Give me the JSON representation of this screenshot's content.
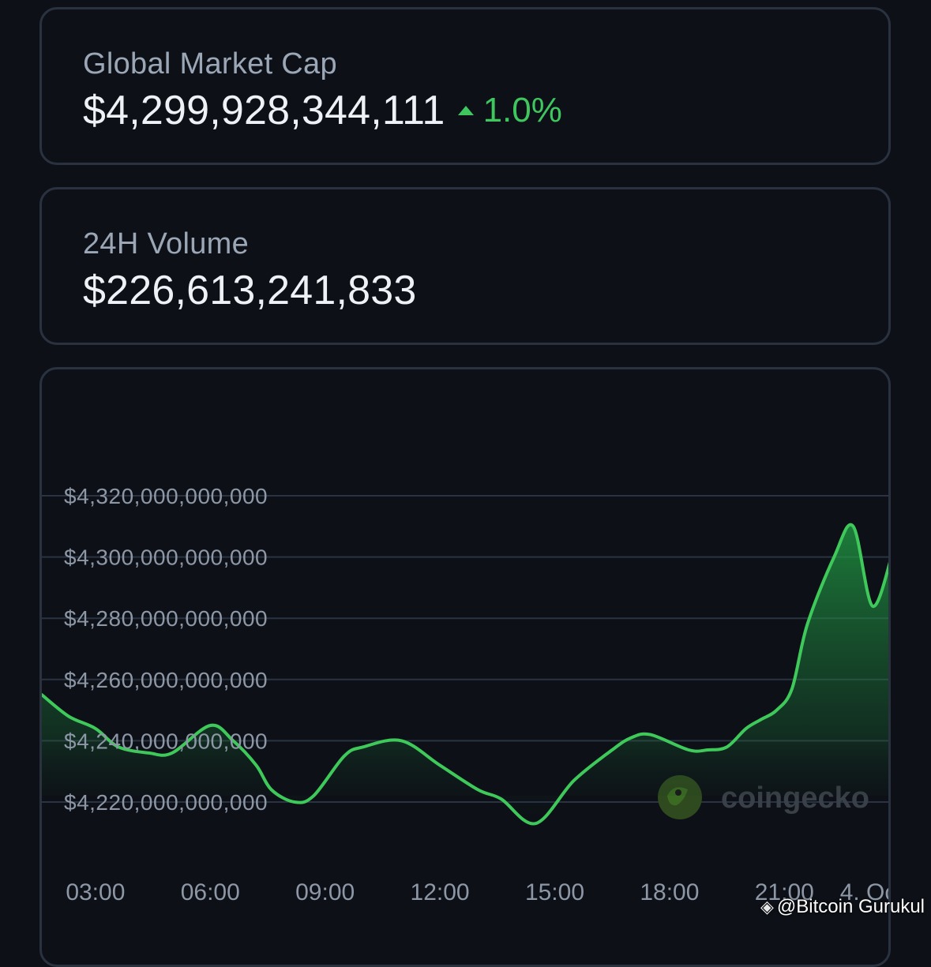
{
  "market_cap": {
    "label": "Global Market Cap",
    "value": "$4,299,928,344,111",
    "change": "1.0%",
    "change_direction": "up",
    "change_color": "#3fc65f"
  },
  "volume": {
    "label": "24H Volume",
    "value": "$226,613,241,833"
  },
  "chart_data": {
    "type": "area",
    "x": [
      1.6,
      2.3,
      3.0,
      3.6,
      4.4,
      5.0,
      6.0,
      6.6,
      7.2,
      7.6,
      8.2,
      8.7,
      9.5,
      10.0,
      11.0,
      12.0,
      13.0,
      13.6,
      14.5,
      15.5,
      16.5,
      17.0,
      17.5,
      18.5,
      19.0,
      19.5,
      20.0,
      20.4,
      20.8,
      21.2,
      21.6,
      22.3,
      22.8,
      23.3,
      23.8
    ],
    "series": [
      {
        "values": [
          4255,
          4248,
          4244,
          4238,
          4236,
          4236,
          4245,
          4240,
          4232,
          4224,
          4220,
          4222,
          4235,
          4238,
          4240,
          4232,
          4224,
          4221,
          4213,
          4227,
          4237,
          4241,
          4242,
          4237,
          4237,
          4238,
          4244,
          4247,
          4250,
          4257,
          4278,
          4300,
          4310,
          4284,
          4300
        ]
      }
    ],
    "y_tick_labels": [
      "$4,320,000,000,000",
      "$4,300,000,000,000",
      "$4,280,000,000,000",
      "$4,260,000,000,000",
      "$4,240,000,000,000",
      "$4,220,000,000,000"
    ],
    "y_ticks": [
      4320,
      4300,
      4280,
      4260,
      4240,
      4220
    ],
    "y_unit": "billions USD",
    "x_tick_labels": [
      "03:00",
      "06:00",
      "09:00",
      "12:00",
      "15:00",
      "18:00",
      "21:00",
      "4. Oc"
    ],
    "x_ticks": [
      3,
      6,
      9,
      12,
      15,
      18,
      21,
      24
    ],
    "grid": true,
    "line_color": "#3ec95a",
    "fill_color": "#22a046"
  },
  "watermark": {
    "text": "coingecko",
    "icon": "gecko-logo-icon"
  },
  "credit": {
    "icon": "binance-diamond-icon",
    "text": "@Bitcoin Gurukul"
  }
}
